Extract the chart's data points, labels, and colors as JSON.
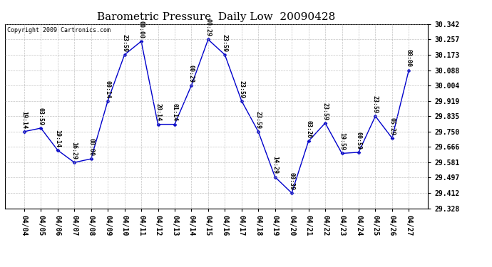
{
  "title": "Barometric Pressure  Daily Low  20090428",
  "copyright": "Copyright 2009 Cartronics.com",
  "dates": [
    "04/04",
    "04/05",
    "04/06",
    "04/07",
    "04/08",
    "04/09",
    "04/10",
    "04/11",
    "04/12",
    "04/13",
    "04/14",
    "04/15",
    "04/16",
    "04/17",
    "04/18",
    "04/19",
    "04/20",
    "04/21",
    "04/22",
    "04/23",
    "04/24",
    "04/25",
    "04/26",
    "04/27"
  ],
  "values": [
    29.75,
    29.769,
    29.648,
    29.58,
    29.6,
    29.919,
    30.173,
    30.247,
    29.79,
    29.79,
    30.004,
    30.257,
    30.173,
    29.919,
    29.75,
    29.5,
    29.412,
    29.697,
    29.797,
    29.63,
    29.636,
    29.835,
    29.714,
    30.088
  ],
  "times": [
    "19:14",
    "03:59",
    "19:14",
    "16:29",
    "00:00",
    "00:14",
    "23:59",
    "00:00",
    "20:14",
    "01:14",
    "00:29",
    "00:29",
    "23:59",
    "23:59",
    "23:59",
    "14:29",
    "00:39",
    "03:26",
    "23:59",
    "19:59",
    "00:59",
    "23:59",
    "05:29",
    "00:00"
  ],
  "ylim": [
    29.328,
    30.342
  ],
  "yticks": [
    29.328,
    29.412,
    29.497,
    29.581,
    29.666,
    29.75,
    29.835,
    29.919,
    30.004,
    30.088,
    30.173,
    30.257,
    30.342
  ],
  "line_color": "#0000cc",
  "marker_color": "#0000cc",
  "bg_color": "#ffffff",
  "grid_color": "#aaaaaa",
  "title_fontsize": 11,
  "copyright_fontsize": 6,
  "tick_fontsize": 7,
  "annotation_fontsize": 6
}
